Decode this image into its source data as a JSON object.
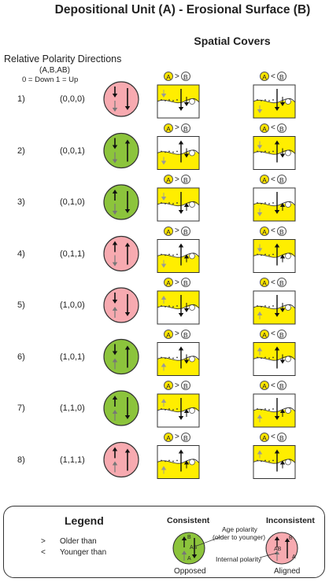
{
  "title": "Depositional Unit (A) - Erosional Surface (B)",
  "subtitle": "Spatial Covers",
  "polarity": {
    "heading": "Relative Polarity Directions",
    "tuple_label": "(A,B,AB)",
    "code": "0 = Down  1 = Up"
  },
  "covers": {
    "left": {
      "a": "A",
      "op": ">",
      "b": "B"
    },
    "right": {
      "a": "A",
      "op": "<",
      "b": "B"
    }
  },
  "rows": [
    {
      "num": "1)",
      "tuple": "(0,0,0)",
      "status": "inconsistent",
      "color": "#f7aab0"
    },
    {
      "num": "2)",
      "tuple": "(0,0,1)",
      "status": "consistent",
      "color": "#8cc43c"
    },
    {
      "num": "3)",
      "tuple": "(0,1,0)",
      "status": "consistent",
      "color": "#8cc43c"
    },
    {
      "num": "4)",
      "tuple": "(0,1,1)",
      "status": "inconsistent",
      "color": "#f7aab0"
    },
    {
      "num": "5)",
      "tuple": "(1,0,0)",
      "status": "inconsistent",
      "color": "#f7aab0"
    },
    {
      "num": "6)",
      "tuple": "(1,0,1)",
      "status": "consistent",
      "color": "#8cc43c"
    },
    {
      "num": "7)",
      "tuple": "(1,1,0)",
      "status": "consistent",
      "color": "#8cc43c"
    },
    {
      "num": "8)",
      "tuple": "(1,1,1)",
      "status": "inconsistent",
      "color": "#f7aab0"
    }
  ],
  "legend": {
    "title": "Legend",
    "older_symbol": ">",
    "older_text": "Older than",
    "younger_symbol": "<",
    "younger_text": "Younger than",
    "consistent": "Consistent",
    "inconsistent": "Inconsistent",
    "age_polarity": "Age polarity",
    "age_polarity_note": "(older to younger)",
    "internal_polarity": "Internal polarity",
    "opposed": "Opposed",
    "aligned": "Aligned",
    "label_a": "A",
    "label_b": "B",
    "label_ab": "AB"
  },
  "colors": {
    "yellow": "#ffee00",
    "green": "#8cc43c",
    "pink": "#f7aab0"
  }
}
